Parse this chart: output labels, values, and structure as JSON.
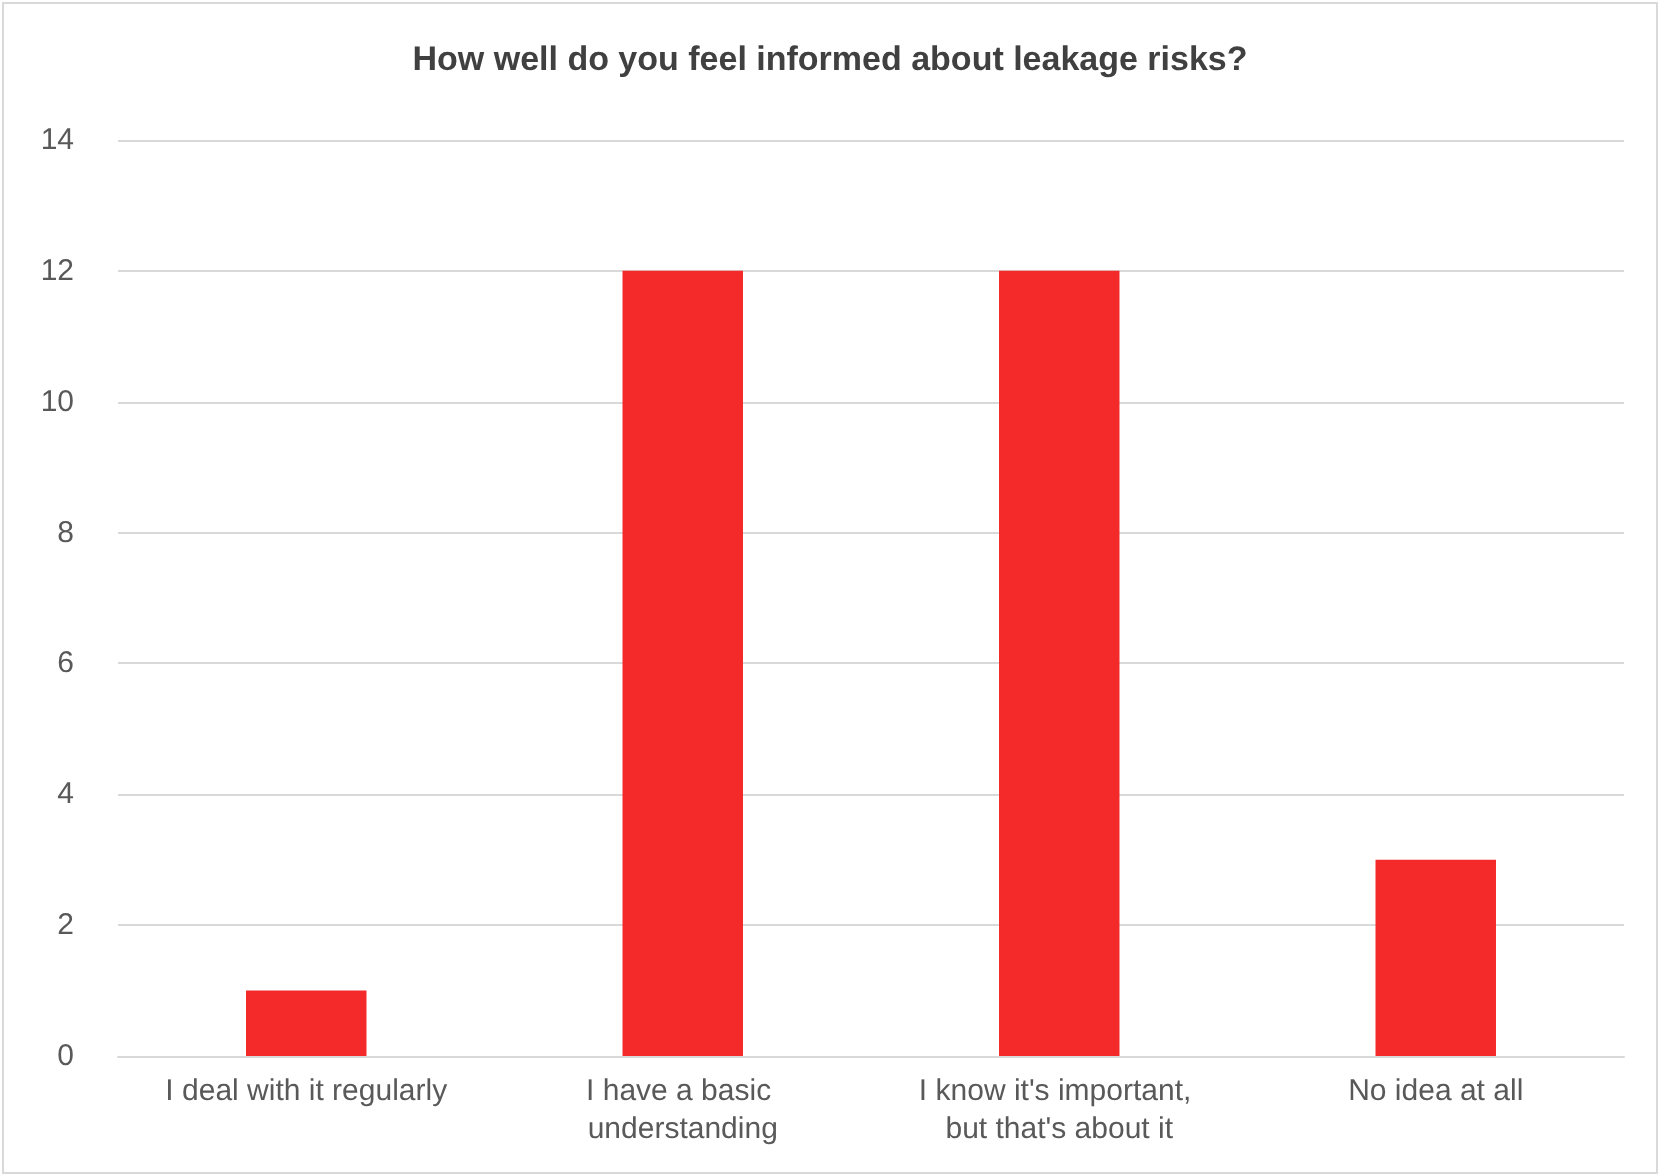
{
  "chart_data": {
    "type": "bar",
    "title": "How well do you feel informed about leakage risks?",
    "categories": [
      "I deal with it regularly",
      "I have a basic understanding",
      "I know it's important, but that's about it",
      "No idea at all"
    ],
    "values": [
      1,
      12,
      12,
      3
    ],
    "color": "#f42a2a",
    "ylim": [
      0,
      14
    ],
    "yticks": [
      0,
      2,
      4,
      6,
      8,
      10,
      12,
      14
    ],
    "grid": "y"
  }
}
